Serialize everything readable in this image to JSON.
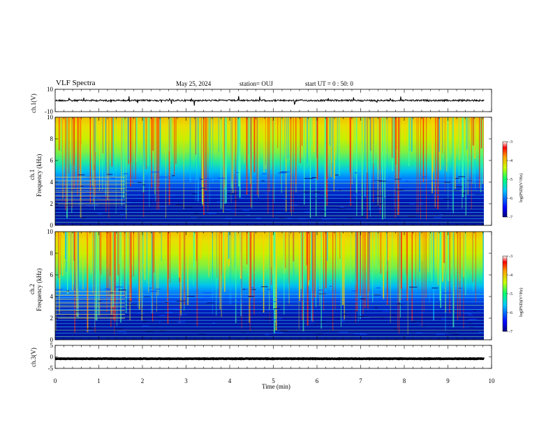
{
  "header": {
    "title": "VLF Spectra",
    "date": "May 25, 2024",
    "station": "station= OUJ",
    "start": "start UT =  0 : 50: 0"
  },
  "chart_data": [
    {
      "type": "line",
      "ylabel": "ch.1(V)",
      "ylim": [
        -10,
        10
      ],
      "y_ticks": [
        "10",
        "-10"
      ],
      "series_level": 0,
      "xlim": [
        0,
        10
      ]
    },
    {
      "type": "heatmap",
      "ylabel": "ch.1\nFrequency  (kHz)",
      "ylim": [
        0,
        10
      ],
      "y_ticks": [
        "0",
        "2",
        "4",
        "6",
        "8",
        "10"
      ],
      "colorbar": {
        "label": "log(PSD)(V²/Hz)",
        "range": [
          -7,
          -3
        ],
        "ticks": [
          "-3",
          "-4",
          "-5",
          "-6",
          "-7"
        ]
      }
    },
    {
      "type": "heatmap",
      "ylabel": "ch.2\nFrequency  (kHz)",
      "ylim": [
        0,
        10
      ],
      "y_ticks": [
        "0",
        "2",
        "4",
        "6",
        "8",
        "10"
      ],
      "colorbar": {
        "label": "log(PSD)(V²/Hz)",
        "range": [
          -7,
          -3
        ],
        "ticks": [
          "-3",
          "-4",
          "-5",
          "-6",
          "-7"
        ]
      }
    },
    {
      "type": "line",
      "ylabel": "ch.3(V)",
      "ylim": [
        -5,
        5
      ],
      "y_ticks": [
        "5",
        "0",
        "-5"
      ],
      "series_level": -0.8,
      "xlim": [
        0,
        10
      ]
    }
  ],
  "xaxis": {
    "label": "Time  (min)",
    "ticks": [
      "0",
      "1",
      "2",
      "3",
      "4",
      "5",
      "6",
      "7",
      "8",
      "9",
      "10"
    ],
    "data_end": 9.83
  },
  "ui": {
    "ch1_label": "ch.1",
    "ch2_label": "ch.2",
    "freq_label": "Frequency  (kHz)",
    "cb_label": "log(PSD)(V²/Hz)"
  }
}
